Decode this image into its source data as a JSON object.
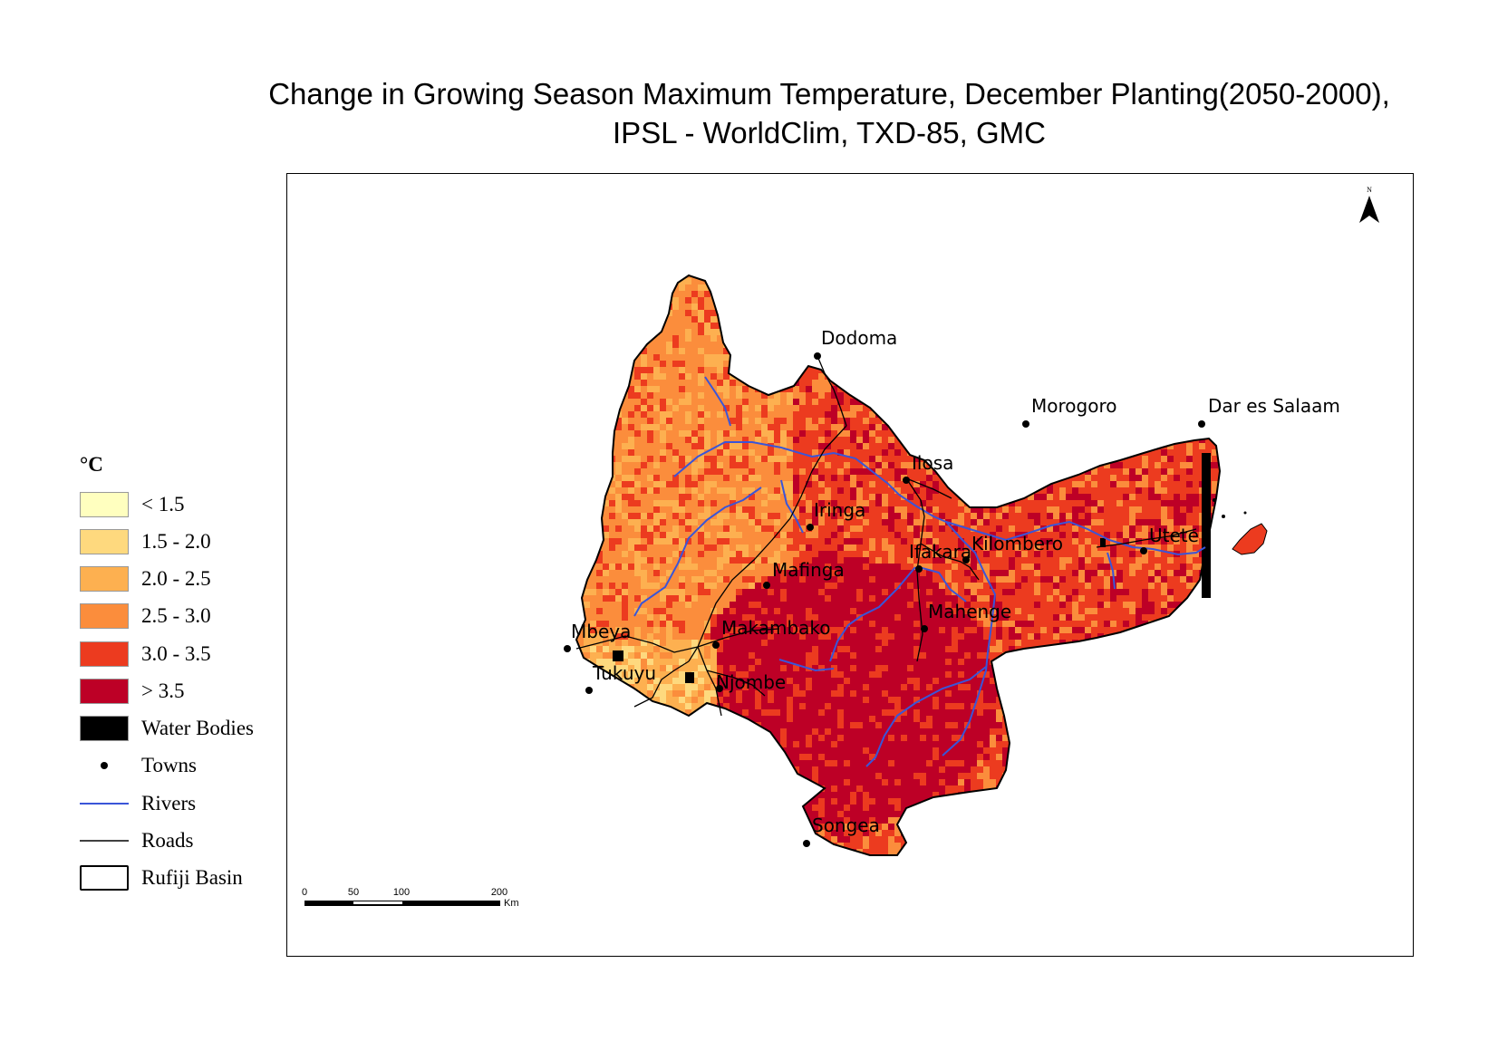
{
  "title": {
    "line1": "Change in Growing Season Maximum Temperature, December Planting(2050-2000),",
    "line2": "IPSL - WorldClim, TXD-85, GMC"
  },
  "legend": {
    "unit": "°C",
    "classes": [
      {
        "label": "< 1.5",
        "color": "#ffffbf"
      },
      {
        "label": "1.5 - 2.0",
        "color": "#fed97e"
      },
      {
        "label": "2.0 - 2.5",
        "color": "#fdb050"
      },
      {
        "label": "2.5 - 3.0",
        "color": "#fb8d3c"
      },
      {
        "label": "3.0 - 3.5",
        "color": "#ec3b1f"
      },
      {
        "label": "> 3.5",
        "color": "#bd0026"
      }
    ],
    "water_bodies": {
      "label": "Water Bodies",
      "color": "#000000"
    },
    "towns": {
      "label": "Towns"
    },
    "rivers": {
      "label": "Rivers",
      "color": "#3a55d8"
    },
    "roads": {
      "label": "Roads",
      "color": "#000000"
    },
    "basin": {
      "label": "Rufiji Basin"
    }
  },
  "towns": [
    {
      "name": "Dodoma"
    },
    {
      "name": "Morogoro"
    },
    {
      "name": "Dar es Salaam"
    },
    {
      "name": "Ilosa"
    },
    {
      "name": "Iringa"
    },
    {
      "name": "Ifakara"
    },
    {
      "name": "Kilombero"
    },
    {
      "name": "Utete"
    },
    {
      "name": "Mafinga"
    },
    {
      "name": "Mahenge"
    },
    {
      "name": "Makambako"
    },
    {
      "name": "Mbeya"
    },
    {
      "name": "Tukuyu"
    },
    {
      "name": "Njombe"
    },
    {
      "name": "Songea"
    }
  ],
  "scale_bar": {
    "ticks": [
      "0",
      "50",
      "100",
      "200"
    ],
    "unit": "Km"
  },
  "north_arrow": {
    "label": "N"
  }
}
